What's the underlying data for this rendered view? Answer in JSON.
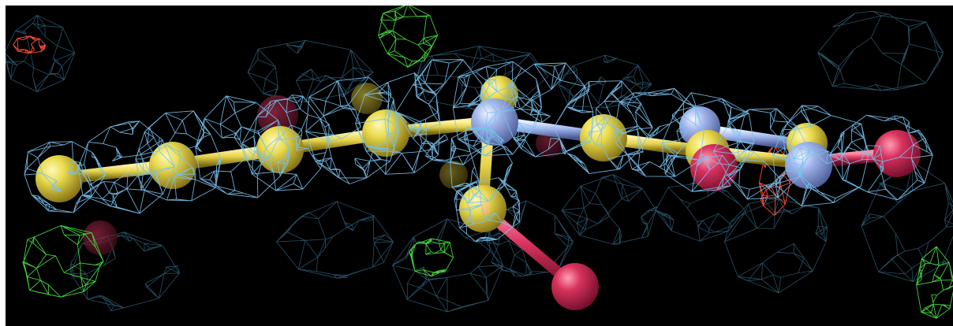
{
  "viewer": {
    "type": "molecular-structure-viewer",
    "background_color": "#000000",
    "mesh_colors": {
      "density_blue": "#6fb8e8",
      "density_dark": "#3a6f8a",
      "difference_positive": "#43d13c",
      "difference_negative": "#ff4a3a"
    },
    "atom_colors": {
      "carbon": "#e8d84a",
      "nitrogen": "#9db2ea",
      "oxygen": "#d8325e"
    },
    "bond_color": "#e8d84a",
    "center_marker_icon": "atom-center-marker-icon"
  }
}
